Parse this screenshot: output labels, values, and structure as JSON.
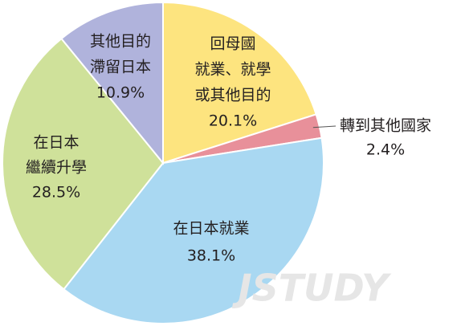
{
  "chart_data": {
    "type": "pie",
    "categories": [
      [
        "回母國",
        "就業、就學",
        "或其他目的"
      ],
      [
        "轉到其他國家"
      ],
      [
        "在日本就業"
      ],
      [
        "在日本",
        "繼續升學"
      ],
      [
        "其他目的",
        "滯留日本"
      ]
    ],
    "values": [
      20.1,
      2.4,
      38.1,
      28.5,
      10.9
    ],
    "value_labels": [
      "20.1%",
      "2.4%",
      "38.1%",
      "28.5%",
      "10.9%"
    ],
    "colors": [
      "#fde47f",
      "#e8909a",
      "#a9d8f2",
      "#cfe19a",
      "#b0b3dc"
    ],
    "watermark": "JSTUDY"
  }
}
